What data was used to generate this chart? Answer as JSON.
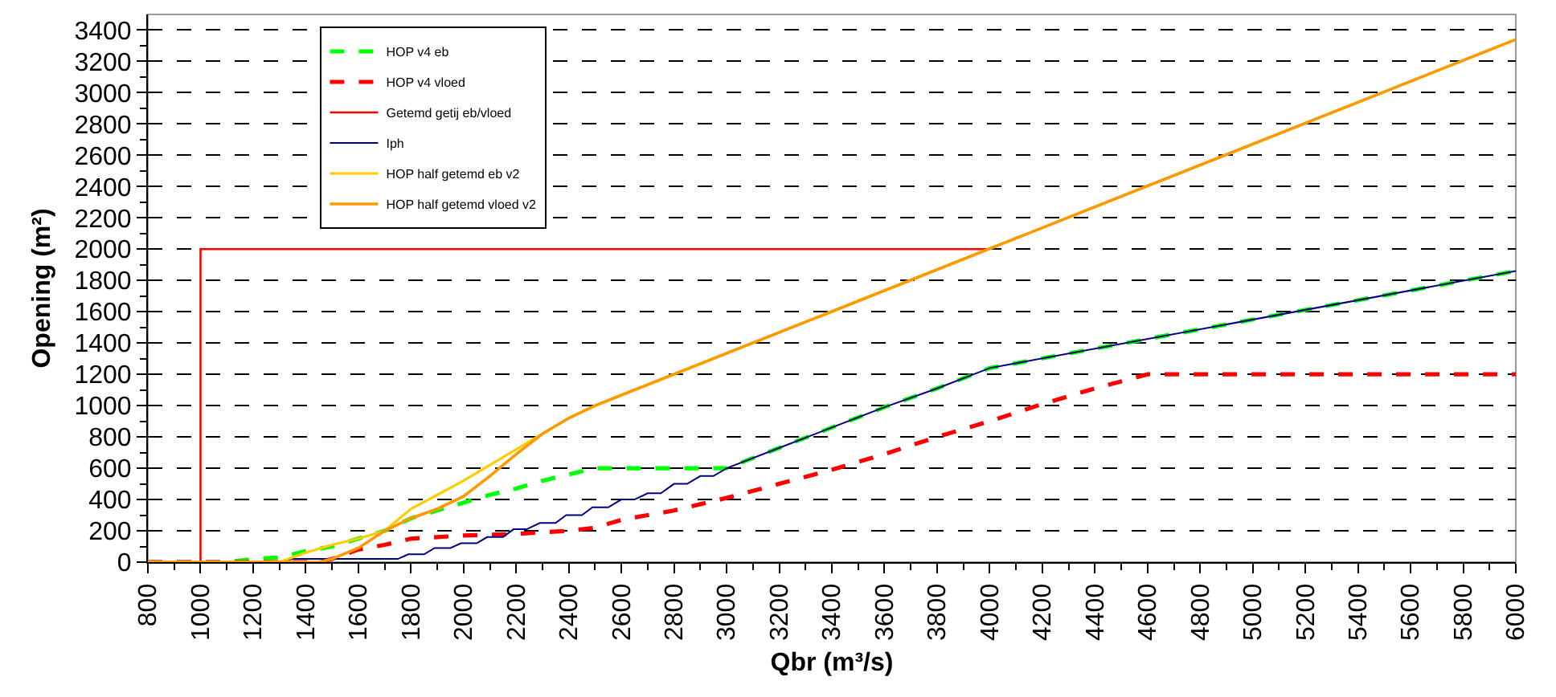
{
  "chart_data": {
    "type": "line",
    "xlabel": "Qbr (m³/s)",
    "ylabel": "Opening (m²)",
    "xlim": [
      800,
      6000
    ],
    "ylim": [
      0,
      3500
    ],
    "xticks": [
      800,
      {
        "value": 900,
        "label": null
      },
      1000,
      {
        "value": 1100,
        "label": null
      },
      1200,
      {
        "value": 1300,
        "label": null
      },
      1400,
      {
        "value": 1500,
        "label": null
      },
      1600,
      {
        "value": 1700,
        "label": null
      },
      1800,
      {
        "value": 1900,
        "label": null
      },
      2000,
      {
        "value": 2100,
        "label": null
      },
      2200,
      {
        "value": 2300,
        "label": null
      },
      2400,
      {
        "value": 2500,
        "label": null
      },
      2600,
      {
        "value": 2700,
        "label": null
      },
      2800,
      {
        "value": 2900,
        "label": null
      },
      3000,
      {
        "value": 3100,
        "label": null
      },
      3200,
      {
        "value": 3300,
        "label": null
      },
      3400,
      {
        "value": 3500,
        "label": null
      },
      3600,
      {
        "value": 3700,
        "label": null
      },
      3800,
      {
        "value": 3900,
        "label": null
      },
      4000,
      {
        "value": 4100,
        "label": null
      },
      4200,
      {
        "value": 4300,
        "label": null
      },
      4400,
      {
        "value": 4500,
        "label": null
      },
      4600,
      {
        "value": 4700,
        "label": null
      },
      4800,
      {
        "value": 4900,
        "label": null
      },
      5000,
      {
        "value": 5100,
        "label": null
      },
      5200,
      {
        "value": 5300,
        "label": null
      },
      5400,
      {
        "value": 5500,
        "label": null
      },
      5600,
      {
        "value": 5700,
        "label": null
      },
      5800,
      {
        "value": 5900,
        "label": null
      },
      6000
    ],
    "yticks": [
      0,
      {
        "value": 100,
        "label": null
      },
      200,
      {
        "value": 300,
        "label": null
      },
      400,
      {
        "value": 500,
        "label": null
      },
      600,
      {
        "value": 700,
        "label": null
      },
      800,
      {
        "value": 900,
        "label": null
      },
      1000,
      {
        "value": 1100,
        "label": null
      },
      1200,
      {
        "value": 1300,
        "label": null
      },
      1400,
      {
        "value": 1500,
        "label": null
      },
      1600,
      {
        "value": 1700,
        "label": null
      },
      1800,
      {
        "value": 1900,
        "label": null
      },
      2000,
      {
        "value": 2100,
        "label": null
      },
      2200,
      {
        "value": 2300,
        "label": null
      },
      2400,
      {
        "value": 2500,
        "label": null
      },
      2600,
      {
        "value": 2700,
        "label": null
      },
      2800,
      {
        "value": 2900,
        "label": null
      },
      3000,
      {
        "value": 3100,
        "label": null
      },
      3200,
      {
        "value": 3300,
        "label": null
      },
      3400
    ],
    "grid": "y",
    "legend": "top left",
    "marker": "none",
    "series": [
      {
        "name": "HOP v4 eb",
        "color": "#00ff00",
        "line_style": "dashed",
        "x": [
          800,
          1100,
          1200,
          1300,
          1400,
          1500,
          1600,
          1700,
          1800,
          1900,
          2000,
          2100,
          2200,
          2300,
          2400,
          2500,
          3000,
          3200,
          3400,
          3600,
          3800,
          4000,
          6000
        ],
        "values": [
          0,
          0,
          20,
          30,
          70,
          100,
          150,
          200,
          280,
          330,
          380,
          430,
          470,
          520,
          560,
          600,
          600,
          730,
          860,
          990,
          1110,
          1240,
          1860
        ]
      },
      {
        "name": "HOP v4 vloed",
        "color": "#ff0000",
        "line_style": "dashed",
        "x": [
          800,
          1450,
          1500,
          1600,
          1700,
          1800,
          1900,
          2000,
          2200,
          2400,
          2500,
          2600,
          2700,
          2800,
          2900,
          3000,
          3200,
          3400,
          3600,
          3800,
          4000,
          4200,
          4400,
          4600,
          6000
        ],
        "values": [
          0,
          0,
          20,
          80,
          110,
          150,
          160,
          170,
          180,
          200,
          220,
          270,
          300,
          330,
          370,
          410,
          500,
          590,
          690,
          800,
          900,
          1010,
          1110,
          1200,
          1200
        ]
      },
      {
        "name": "Getemd getij eb/vloed",
        "color": "#ff0000",
        "line_style": "solid",
        "x": [
          1000,
          1000,
          4000
        ],
        "values": [
          0,
          2000,
          2000
        ]
      },
      {
        "name": "Iph",
        "color": "#000080",
        "line_style": "solid",
        "x": [
          800,
          1300,
          1350,
          1750,
          1790,
          1850,
          1890,
          1950,
          1990,
          2050,
          2090,
          2150,
          2190,
          2240,
          2290,
          2350,
          2390,
          2450,
          2490,
          2550,
          2600,
          2650,
          2700,
          2750,
          2800,
          2850,
          2900,
          2950,
          3000,
          3200,
          3400,
          3600,
          3800,
          4000,
          6000
        ],
        "values": [
          0,
          0,
          20,
          20,
          50,
          50,
          90,
          90,
          120,
          120,
          160,
          160,
          210,
          210,
          250,
          250,
          300,
          300,
          350,
          350,
          400,
          400,
          440,
          440,
          500,
          500,
          550,
          550,
          600,
          730,
          860,
          990,
          1110,
          1240,
          1860
        ]
      },
      {
        "name": "HOP half getemd eb v2",
        "color": "#ffcc00",
        "line_style": "solid",
        "x": [
          800,
          1300,
          1400,
          1500,
          1600,
          1700,
          1800,
          1900,
          2000,
          2100,
          2200,
          2300,
          2400,
          2500,
          6000
        ],
        "values": [
          0,
          0,
          60,
          110,
          150,
          200,
          340,
          430,
          520,
          620,
          720,
          820,
          920,
          1000,
          3340
        ]
      },
      {
        "name": "HOP half getemd vloed v2",
        "color": "#ff9900",
        "line_style": "solid",
        "x": [
          800,
          1450,
          1500,
          1600,
          1700,
          1800,
          1900,
          2000,
          2100,
          2200,
          2300,
          2400,
          2500,
          6000
        ],
        "values": [
          0,
          0,
          20,
          90,
          200,
          280,
          340,
          420,
          550,
          690,
          820,
          920,
          1000,
          3340
        ]
      }
    ]
  }
}
